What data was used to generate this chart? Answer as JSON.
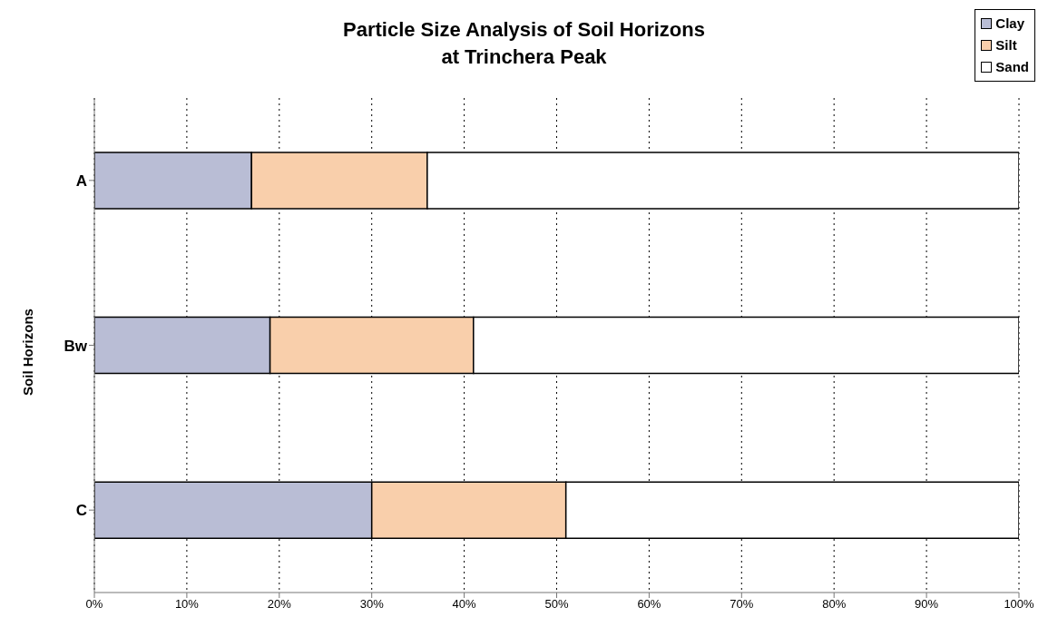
{
  "chart_data": {
    "type": "bar",
    "orientation": "horizontal",
    "stacked": true,
    "title": "Particle Size Analysis of Soil Horizons\nat Trinchera Peak",
    "ylabel": "Soil Horizons",
    "categories": [
      "A",
      "Bw",
      "C"
    ],
    "series": [
      {
        "name": "Clay",
        "color": "#b9bdd5",
        "values": [
          17,
          19,
          30
        ]
      },
      {
        "name": "Silt",
        "color": "#f9cfab",
        "values": [
          19,
          22,
          21
        ]
      },
      {
        "name": "Sand",
        "color": "#ffffff",
        "values": [
          64,
          59,
          49
        ]
      }
    ],
    "xlim": [
      0,
      100
    ],
    "xticks": [
      {
        "value": 0,
        "label": "0%"
      },
      {
        "value": 10,
        "label": "10%"
      },
      {
        "value": 20,
        "label": "20%"
      },
      {
        "value": 30,
        "label": "30%"
      },
      {
        "value": 40,
        "label": "40%"
      },
      {
        "value": 50,
        "label": "50%"
      },
      {
        "value": 60,
        "label": "60%"
      },
      {
        "value": 70,
        "label": "70%"
      },
      {
        "value": 80,
        "label": "80%"
      },
      {
        "value": 90,
        "label": "90%"
      },
      {
        "value": 100,
        "label": "100%"
      }
    ],
    "grid": "x",
    "legend": "top right"
  }
}
